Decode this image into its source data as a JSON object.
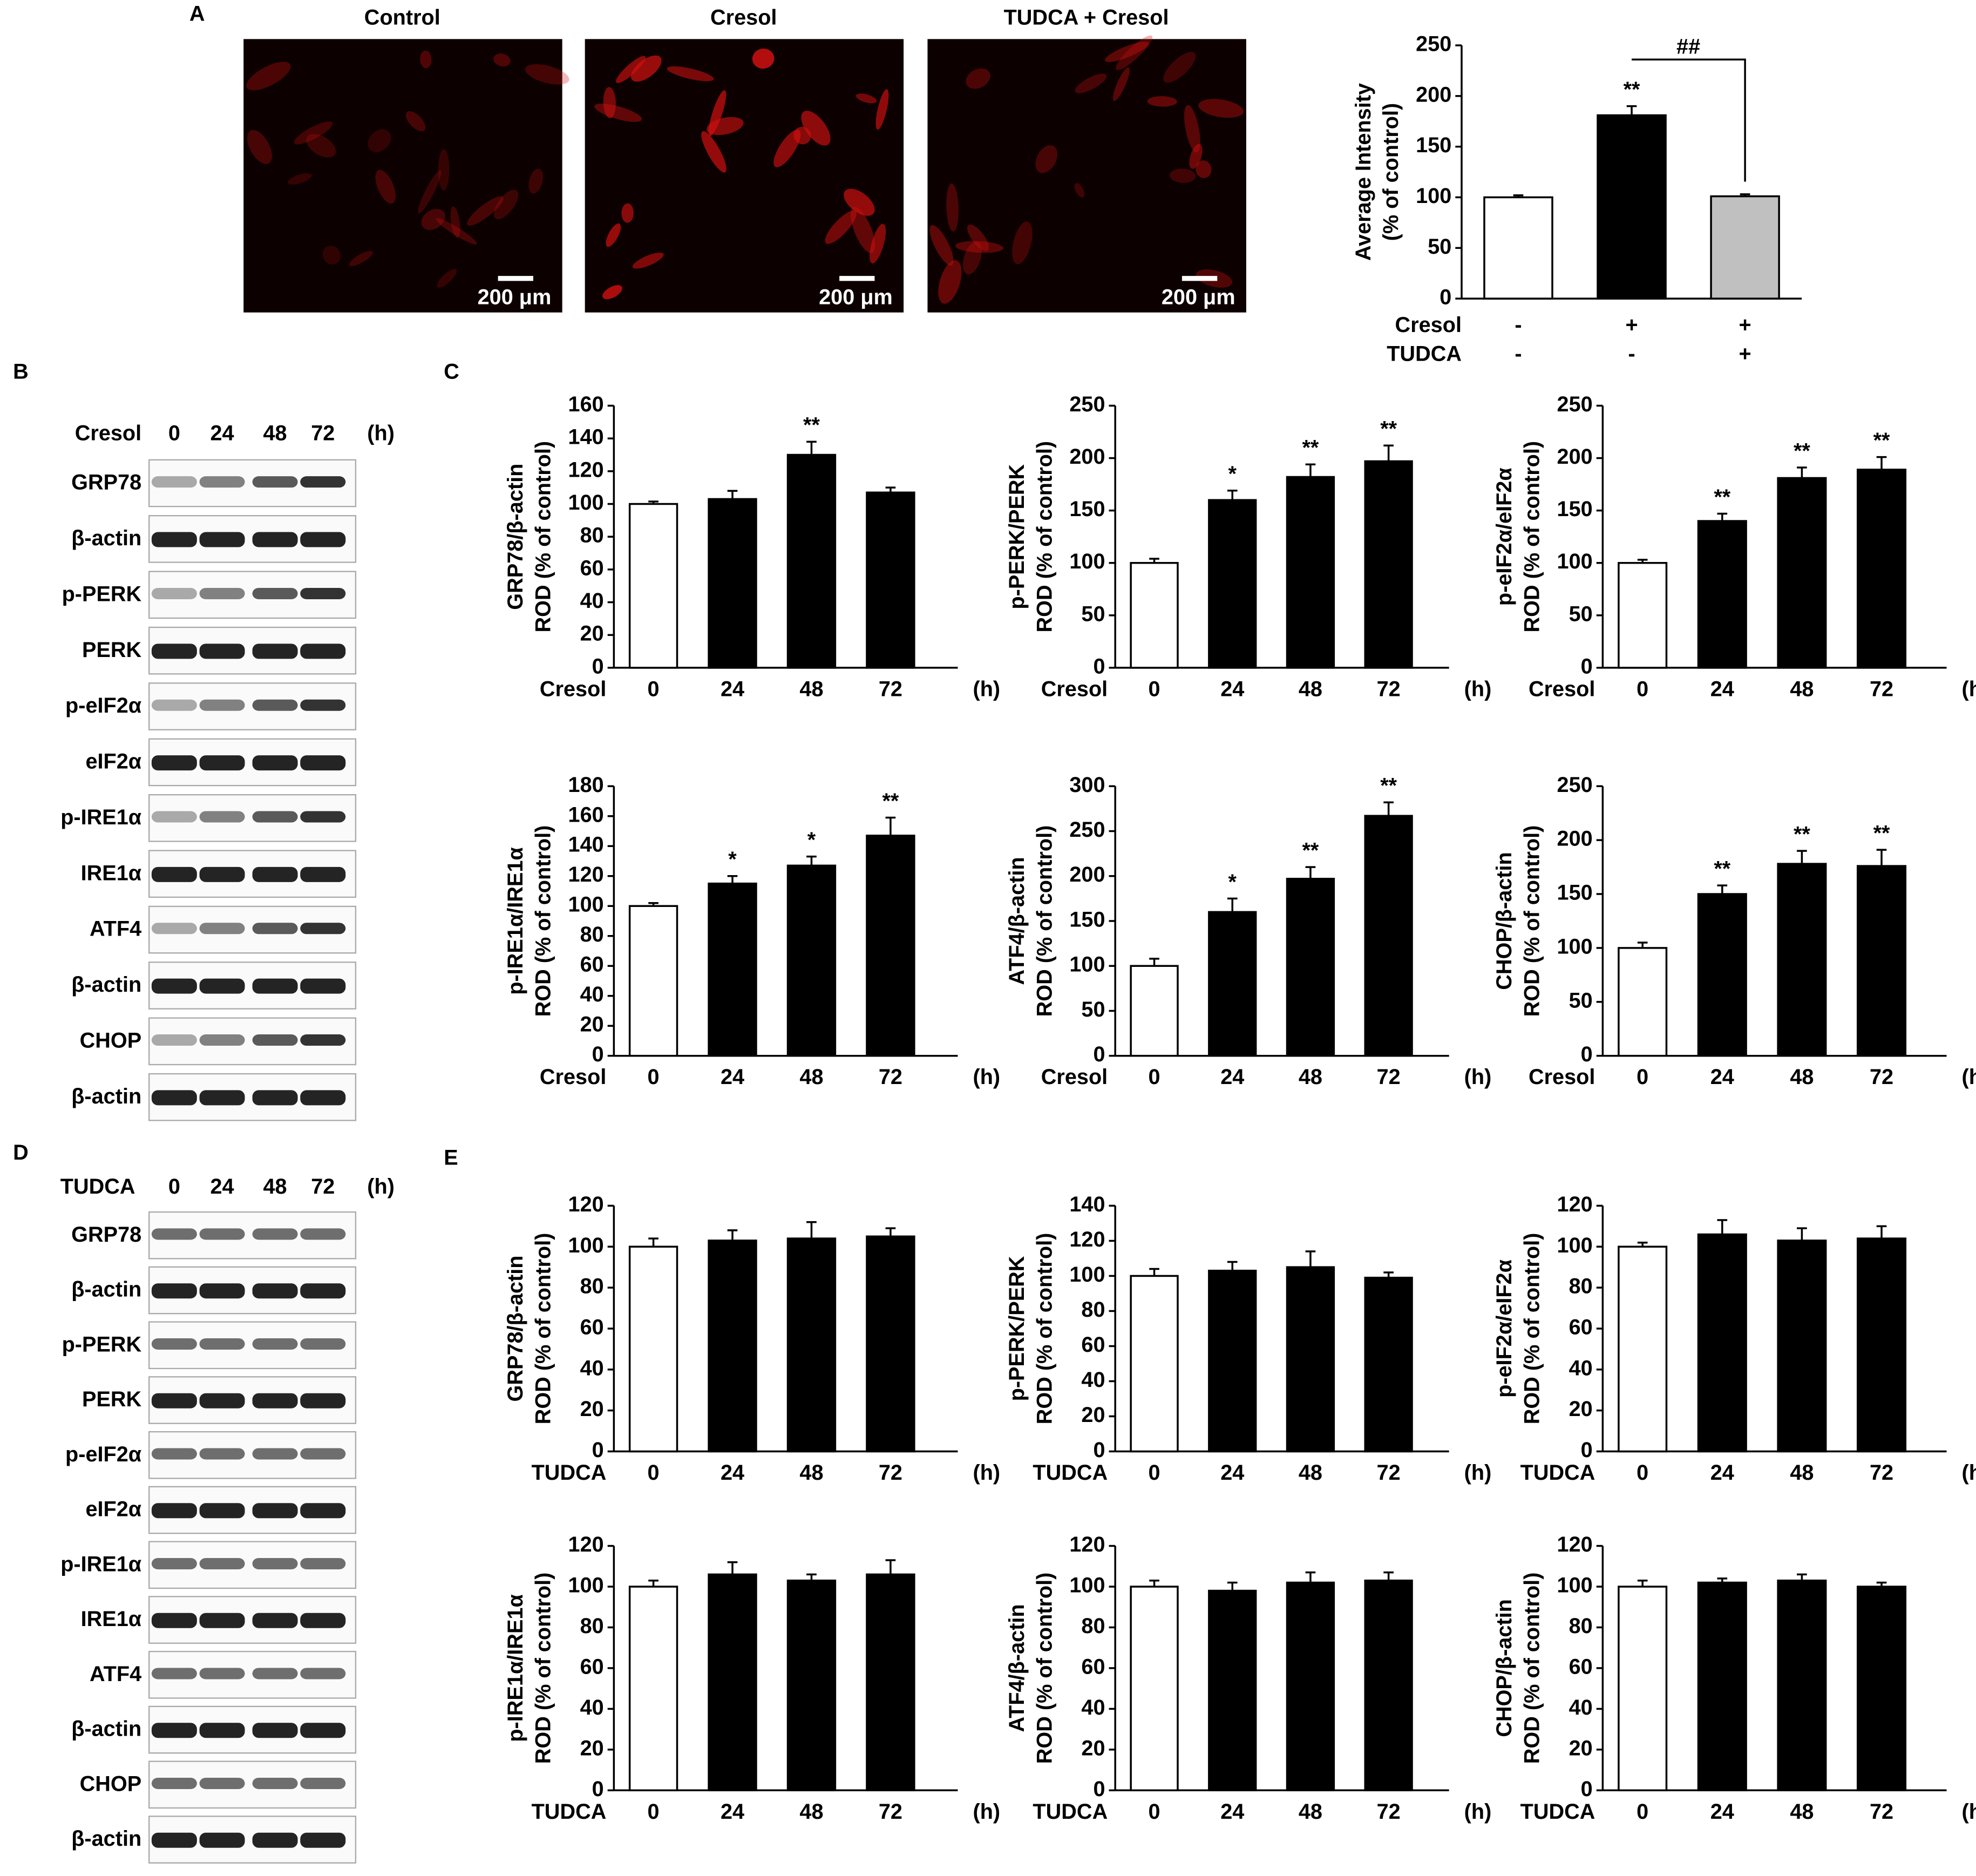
{
  "panel_labels": [
    "A",
    "B",
    "C",
    "D",
    "E"
  ],
  "images": {
    "titles": [
      "Control",
      "Cresol",
      "TUDCA + Cresol"
    ],
    "scale_bar": "200 μm"
  },
  "blots": [
    {
      "treatment": "Cresol",
      "times": [
        "0",
        "24",
        "48",
        "72"
      ],
      "unit": "(h)",
      "rows": [
        "GRP78",
        "β-actin",
        "p-PERK",
        "PERK",
        "p-eIF2α",
        "eIF2α",
        "p-IRE1α",
        "IRE1α",
        "ATF4",
        "β-actin",
        "CHOP",
        "β-actin"
      ]
    },
    {
      "treatment": "TUDCA",
      "times": [
        "0",
        "24",
        "48",
        "72"
      ],
      "unit": "(h)",
      "rows": [
        "GRP78",
        "β-actin",
        "p-PERK",
        "PERK",
        "p-eIF2α",
        "eIF2α",
        "p-IRE1α",
        "IRE1α",
        "ATF4",
        "β-actin",
        "CHOP",
        "β-actin"
      ]
    }
  ],
  "chart_data": [
    {
      "type": "bar",
      "ylabel": [
        "Average Intensity",
        "(% of control)"
      ],
      "values": [
        100,
        181,
        101
      ],
      "errors": [
        2,
        9,
        2
      ],
      "colors": [
        "#ffffff",
        "#000000",
        "#c0c0c0"
      ],
      "significance": [
        null,
        "**",
        null
      ],
      "comparison": "##",
      "conditions": [
        {
          "name": "Cresol",
          "values": [
            "-",
            "+",
            "+"
          ]
        },
        {
          "name": "TUDCA",
          "values": [
            "-",
            "-",
            "+"
          ]
        }
      ],
      "ylim": [
        0,
        250
      ],
      "yticks": [
        0,
        50,
        100,
        150,
        200,
        250
      ]
    },
    {
      "type": "bar",
      "ylabel": [
        "GRP78/β-actin",
        "ROD (% of control)"
      ],
      "xlabel": "Cresol",
      "categories": [
        "0",
        "24",
        "48",
        "72"
      ],
      "x_unit": "(h)",
      "values": [
        100,
        103,
        130,
        107
      ],
      "errors": [
        1.5,
        5,
        8,
        3
      ],
      "significance": [
        null,
        null,
        "**",
        null
      ],
      "colors": [
        "#ffffff",
        "#000000",
        "#000000",
        "#000000"
      ],
      "ylim": [
        0,
        160
      ],
      "yticks": [
        0,
        20,
        40,
        60,
        80,
        100,
        120,
        140,
        160
      ]
    },
    {
      "type": "bar",
      "ylabel": [
        "p-PERK/PERK",
        "ROD (% of control)"
      ],
      "xlabel": "Cresol",
      "categories": [
        "0",
        "24",
        "48",
        "72"
      ],
      "x_unit": "(h)",
      "values": [
        100,
        160,
        182,
        197
      ],
      "errors": [
        4,
        9,
        12,
        15
      ],
      "significance": [
        null,
        "*",
        "**",
        "**"
      ],
      "colors": [
        "#ffffff",
        "#000000",
        "#000000",
        "#000000"
      ],
      "ylim": [
        0,
        250
      ],
      "yticks": [
        0,
        50,
        100,
        150,
        200,
        250
      ]
    },
    {
      "type": "bar",
      "ylabel": [
        "p-eIF2α/eIF2α",
        "ROD (% of control)"
      ],
      "xlabel": "Cresol",
      "categories": [
        "0",
        "24",
        "48",
        "72"
      ],
      "x_unit": "(h)",
      "values": [
        100,
        140,
        181,
        189
      ],
      "errors": [
        3,
        7,
        10,
        12
      ],
      "significance": [
        null,
        "**",
        "**",
        "**"
      ],
      "colors": [
        "#ffffff",
        "#000000",
        "#000000",
        "#000000"
      ],
      "ylim": [
        0,
        250
      ],
      "yticks": [
        0,
        50,
        100,
        150,
        200,
        250
      ]
    },
    {
      "type": "bar",
      "ylabel": [
        "p-IRE1α/IRE1α",
        "ROD (% of control)"
      ],
      "xlabel": "Cresol",
      "categories": [
        "0",
        "24",
        "48",
        "72"
      ],
      "x_unit": "(h)",
      "values": [
        100,
        115,
        127,
        147
      ],
      "errors": [
        2,
        5,
        6,
        12
      ],
      "significance": [
        null,
        "*",
        "*",
        "**"
      ],
      "colors": [
        "#ffffff",
        "#000000",
        "#000000",
        "#000000"
      ],
      "ylim": [
        0,
        180
      ],
      "yticks": [
        0,
        20,
        40,
        60,
        80,
        100,
        120,
        140,
        160,
        180
      ]
    },
    {
      "type": "bar",
      "ylabel": [
        "ATF4/β-actin",
        "ROD (% of control)"
      ],
      "xlabel": "Cresol",
      "categories": [
        "0",
        "24",
        "48",
        "72"
      ],
      "x_unit": "(h)",
      "values": [
        100,
        160,
        197,
        267
      ],
      "errors": [
        8,
        15,
        13,
        15
      ],
      "significance": [
        null,
        "*",
        "**",
        "**"
      ],
      "colors": [
        "#ffffff",
        "#000000",
        "#000000",
        "#000000"
      ],
      "ylim": [
        0,
        300
      ],
      "yticks": [
        0,
        50,
        100,
        150,
        200,
        250,
        300
      ]
    },
    {
      "type": "bar",
      "ylabel": [
        "CHOP/β-actin",
        "ROD (% of control)"
      ],
      "xlabel": "Cresol",
      "categories": [
        "0",
        "24",
        "48",
        "72"
      ],
      "x_unit": "(h)",
      "values": [
        100,
        150,
        178,
        176
      ],
      "errors": [
        5,
        8,
        12,
        15
      ],
      "significance": [
        null,
        "**",
        "**",
        "**"
      ],
      "colors": [
        "#ffffff",
        "#000000",
        "#000000",
        "#000000"
      ],
      "ylim": [
        0,
        250
      ],
      "yticks": [
        0,
        50,
        100,
        150,
        200,
        250
      ]
    },
    {
      "type": "bar",
      "ylabel": [
        "GRP78/β-actin",
        "ROD (% of control)"
      ],
      "xlabel": "TUDCA",
      "categories": [
        "0",
        "24",
        "48",
        "72"
      ],
      "x_unit": "(h)",
      "values": [
        100,
        103,
        104,
        105
      ],
      "errors": [
        4,
        5,
        8,
        4
      ],
      "colors": [
        "#ffffff",
        "#000000",
        "#000000",
        "#000000"
      ],
      "ylim": [
        0,
        120
      ],
      "yticks": [
        0,
        20,
        40,
        60,
        80,
        100,
        120
      ]
    },
    {
      "type": "bar",
      "ylabel": [
        "p-PERK/PERK",
        "ROD (% of control)"
      ],
      "xlabel": "TUDCA",
      "categories": [
        "0",
        "24",
        "48",
        "72"
      ],
      "x_unit": "(h)",
      "values": [
        100,
        103,
        105,
        99
      ],
      "errors": [
        4,
        5,
        9,
        3
      ],
      "colors": [
        "#ffffff",
        "#000000",
        "#000000",
        "#000000"
      ],
      "ylim": [
        0,
        140
      ],
      "yticks": [
        0,
        20,
        40,
        60,
        80,
        100,
        120,
        140
      ]
    },
    {
      "type": "bar",
      "ylabel": [
        "p-eIF2α/eIF2α",
        "ROD (% of control)"
      ],
      "xlabel": "TUDCA",
      "categories": [
        "0",
        "24",
        "48",
        "72"
      ],
      "x_unit": "(h)",
      "values": [
        100,
        106,
        103,
        104
      ],
      "errors": [
        2,
        7,
        6,
        6
      ],
      "colors": [
        "#ffffff",
        "#000000",
        "#000000",
        "#000000"
      ],
      "ylim": [
        0,
        120
      ],
      "yticks": [
        0,
        20,
        40,
        60,
        80,
        100,
        120
      ]
    },
    {
      "type": "bar",
      "ylabel": [
        "p-IRE1α/IRE1α",
        "ROD (% of control)"
      ],
      "xlabel": "TUDCA",
      "categories": [
        "0",
        "24",
        "48",
        "72"
      ],
      "x_unit": "(h)",
      "values": [
        100,
        106,
        103,
        106
      ],
      "errors": [
        3,
        6,
        3,
        7
      ],
      "colors": [
        "#ffffff",
        "#000000",
        "#000000",
        "#000000"
      ],
      "ylim": [
        0,
        120
      ],
      "yticks": [
        0,
        20,
        40,
        60,
        80,
        100,
        120
      ]
    },
    {
      "type": "bar",
      "ylabel": [
        "ATF4/β-actin",
        "ROD (% of control)"
      ],
      "xlabel": "TUDCA",
      "categories": [
        "0",
        "24",
        "48",
        "72"
      ],
      "x_unit": "(h)",
      "values": [
        100,
        98,
        102,
        103
      ],
      "errors": [
        3,
        4,
        5,
        4
      ],
      "colors": [
        "#ffffff",
        "#000000",
        "#000000",
        "#000000"
      ],
      "ylim": [
        0,
        120
      ],
      "yticks": [
        0,
        20,
        40,
        60,
        80,
        100,
        120
      ]
    },
    {
      "type": "bar",
      "ylabel": [
        "CHOP/β-actin",
        "ROD (% of control)"
      ],
      "xlabel": "TUDCA",
      "categories": [
        "0",
        "24",
        "48",
        "72"
      ],
      "x_unit": "(h)",
      "values": [
        100,
        102,
        103,
        100
      ],
      "errors": [
        3,
        2,
        3,
        2
      ],
      "colors": [
        "#ffffff",
        "#000000",
        "#000000",
        "#000000"
      ],
      "ylim": [
        0,
        120
      ],
      "yticks": [
        0,
        20,
        40,
        60,
        80,
        100,
        120
      ]
    }
  ]
}
